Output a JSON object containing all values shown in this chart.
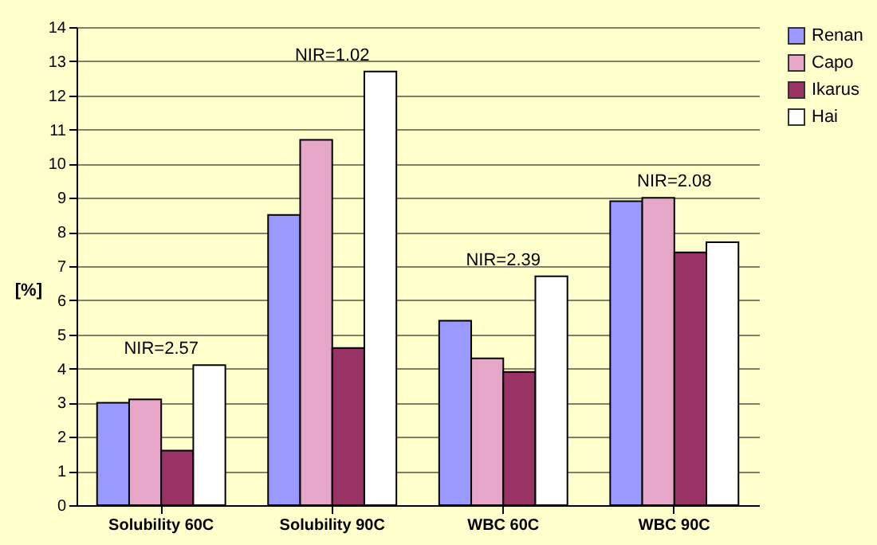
{
  "chart_data": {
    "type": "bar",
    "ylabel": "[%]",
    "categories": [
      "Solubility 60C",
      "Solubility 90C",
      "WBC 60C",
      "WBC 90C"
    ],
    "series": [
      {
        "name": "Renan",
        "color": "#9999ff",
        "values": [
          3.0,
          8.5,
          5.4,
          8.9
        ]
      },
      {
        "name": "Capo",
        "color": "#e6a6c8",
        "values": [
          3.1,
          10.7,
          4.3,
          9.0
        ]
      },
      {
        "name": "Ikarus",
        "color": "#993366",
        "values": [
          1.6,
          4.6,
          3.9,
          7.4
        ]
      },
      {
        "name": "Hai",
        "color": "#ffffff",
        "values": [
          4.1,
          12.7,
          6.7,
          7.7
        ]
      }
    ],
    "annotations": [
      "NIR=2.57",
      "NIR=1.02",
      "NIR=2.39",
      "NIR=2.08"
    ],
    "ylim": [
      0,
      14
    ],
    "yticks": [
      0,
      1,
      2,
      3,
      4,
      5,
      6,
      7,
      8,
      9,
      10,
      11,
      12,
      13,
      14
    ],
    "grid": "y",
    "legend": "right"
  }
}
